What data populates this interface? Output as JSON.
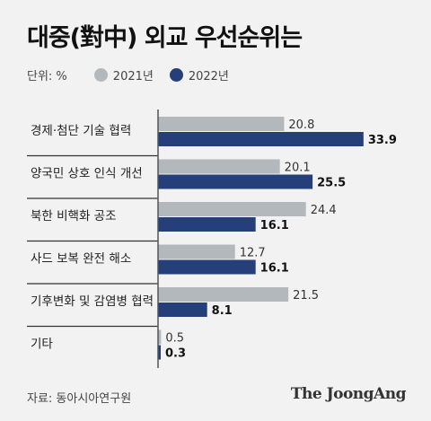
{
  "title": "대중(對中) 외교 우선순위는",
  "legend": {
    "unit": "단위: %",
    "items": [
      {
        "label": "2021년",
        "color": "#b3b8bd"
      },
      {
        "label": "2022년",
        "color": "#243f7a"
      }
    ]
  },
  "chart_data": {
    "type": "bar",
    "orientation": "horizontal",
    "categories": [
      "경제·첨단 기술 협력",
      "양국민 상호 인식 개선",
      "북한 비핵화 공조",
      "사드 보복 완전 해소",
      "기후변화 및 감염병 협력",
      "기타"
    ],
    "series": [
      {
        "name": "2021년",
        "color": "#b3b8bd",
        "values": [
          20.8,
          20.1,
          24.4,
          12.7,
          21.5,
          0.5
        ]
      },
      {
        "name": "2022년",
        "color": "#243f7a",
        "values": [
          33.9,
          25.5,
          16.1,
          16.1,
          8.1,
          0.3
        ]
      }
    ],
    "value_labels_2021": [
      "20.8",
      "20.1",
      "24.4",
      "12.7",
      "21.5",
      "0.5"
    ],
    "value_labels_2022": [
      "33.9",
      "25.5",
      "16.1",
      "16.1",
      "8.1",
      "0.3"
    ],
    "xlim": [
      0,
      40
    ]
  },
  "footer": {
    "source": "자료: 동아시아연구원",
    "brand": "The JoongAng"
  }
}
